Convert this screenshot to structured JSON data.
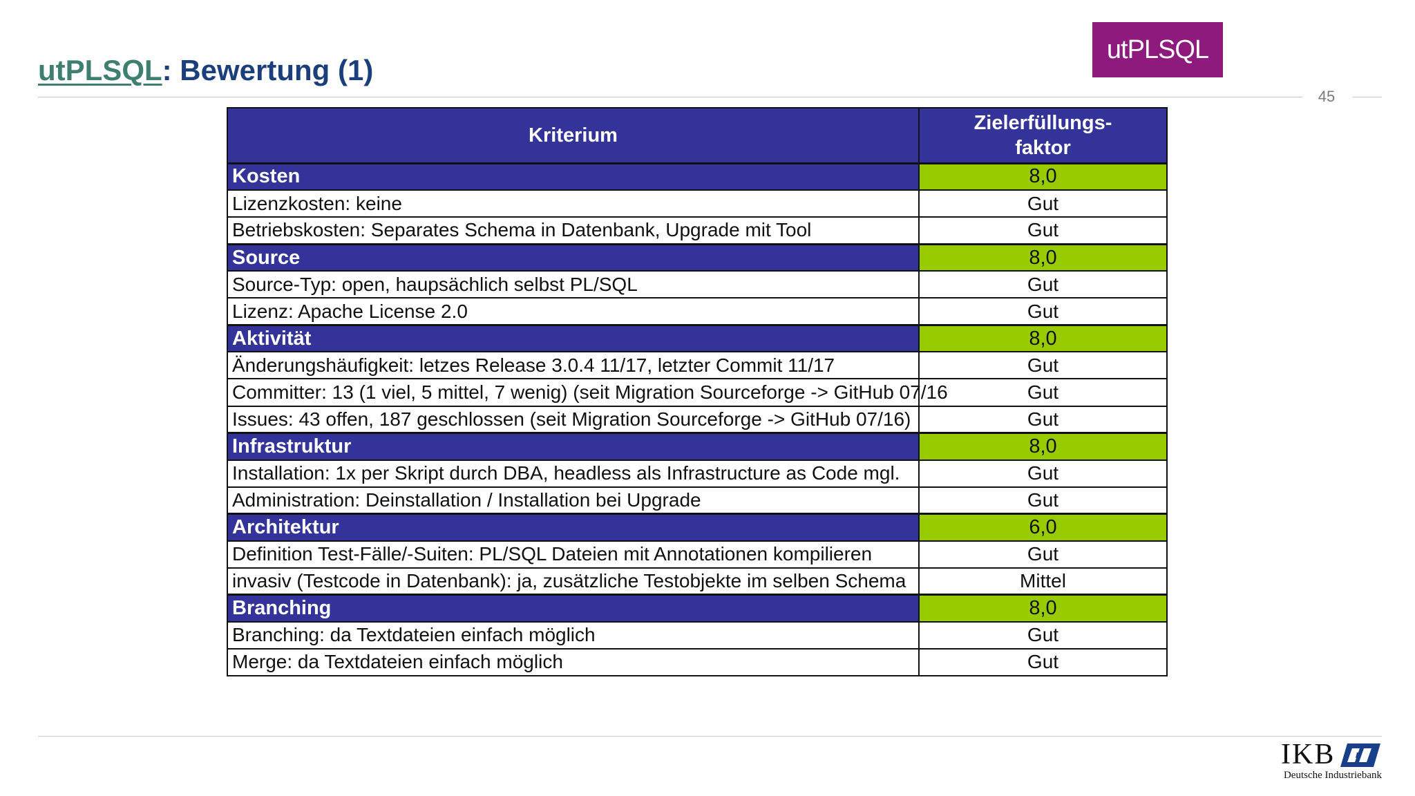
{
  "header": {
    "title_link": "utPLSQL",
    "title_rest": ": Bewertung (1)",
    "page_number": "45",
    "badge": "utPLSQL"
  },
  "table": {
    "col_criterion": "Kriterium",
    "col_factor_line1": "Zielerfüllungs-",
    "col_factor_line2": "faktor",
    "groups": [
      {
        "name": "Kosten",
        "score": "8,0",
        "items": [
          {
            "text": "Lizenzkosten: keine",
            "rating": "Gut"
          },
          {
            "text": "Betriebskosten: Separates Schema in Datenbank, Upgrade mit Tool",
            "rating": "Gut"
          }
        ]
      },
      {
        "name": "Source",
        "score": "8,0",
        "items": [
          {
            "text": "Source-Typ: open, haupsächlich selbst PL/SQL",
            "rating": "Gut"
          },
          {
            "text": "Lizenz: Apache License 2.0",
            "rating": "Gut"
          }
        ]
      },
      {
        "name": "Aktivität",
        "score": "8,0",
        "items": [
          {
            "text": "Änderungshäufigkeit: letzes Release 3.0.4 11/17, letzter Commit 11/17",
            "rating": "Gut"
          },
          {
            "text": "Committer: 13 (1 viel, 5 mittel, 7 wenig) (seit Migration Sourceforge -> GitHub 07/16",
            "rating": "Gut"
          },
          {
            "text": "Issues: 43 offen, 187 geschlossen (seit Migration Sourceforge -> GitHub 07/16)",
            "rating": "Gut"
          }
        ]
      },
      {
        "name": "Infrastruktur",
        "score": "8,0",
        "items": [
          {
            "text": "Installation: 1x per Skript durch DBA, headless als Infrastructure as Code mgl.",
            "rating": "Gut"
          },
          {
            "text": "Administration: Deinstallation / Installation bei Upgrade",
            "rating": "Gut"
          }
        ]
      },
      {
        "name": "Architektur",
        "score": "6,0",
        "items": [
          {
            "text": "Definition Test-Fälle/-Suiten: PL/SQL Dateien mit Annotationen kompilieren",
            "rating": "Gut"
          },
          {
            "text": "invasiv (Testcode in Datenbank): ja, zusätzliche Testobjekte im selben Schema",
            "rating": "Mittel"
          }
        ]
      },
      {
        "name": "Branching",
        "score": "8,0",
        "items": [
          {
            "text": "Branching: da Textdateien einfach möglich",
            "rating": "Gut"
          },
          {
            "text": "Merge: da Textdateien einfach möglich",
            "rating": "Gut"
          }
        ]
      }
    ]
  },
  "footer": {
    "logo_word": "IKB",
    "logo_sub": "Deutsche Industriebank"
  }
}
